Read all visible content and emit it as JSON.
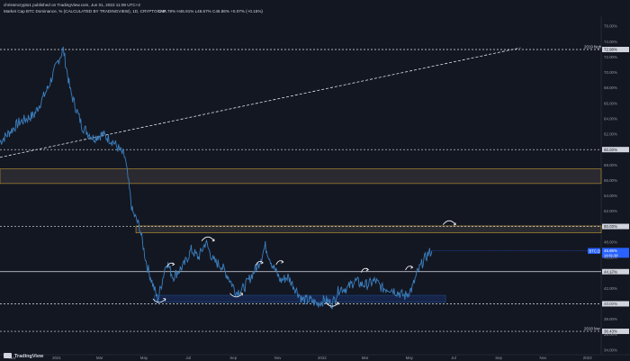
{
  "header": {
    "published": "chrissmcrypto1 published on TradingView.com, Jun 01, 2022 11:08 UTC+2",
    "symbol_line": "Market Cap BTC Dominance, % (CALCULATED BY TRADINGVIEW), 1D, CRYPTOCAP",
    "ohlc": "O46.78%  H46.91%  L46.67%  C46.86%  +0.07% (+0.15%)"
  },
  "brand": {
    "name": "TradingView"
  },
  "colors": {
    "background": "#131722",
    "price_line": "#3b7fbf",
    "support_zone": "#1e4f86",
    "resistance_zone": "#c49a34",
    "current_price_tag": "#2962ff",
    "annotation": "#ffffff"
  },
  "chart_data": {
    "type": "line",
    "title": "Market Cap BTC Dominance, % (CALCULATED BY TRADINGVIEW), 1D, CRYPTOCAP",
    "ylabel": "%",
    "y_scale": "linear",
    "ylim": [
      33.4,
      77.3
    ],
    "xlim": [
      "2020-10-15",
      "2023-01-20"
    ],
    "grid": false,
    "x_ticks": [
      "Nov",
      "2021",
      "Mar",
      "May",
      "Jul",
      "Sep",
      "Nov",
      "2022",
      "Mar",
      "May",
      "Jul",
      "Sep",
      "Nov",
      "2023"
    ],
    "x_tick_dates": [
      "2020-11-01",
      "2021-01-01",
      "2021-03-01",
      "2021-05-01",
      "2021-07-01",
      "2021-09-01",
      "2021-11-01",
      "2022-01-01",
      "2022-03-01",
      "2022-05-01",
      "2022-07-01",
      "2022-09-01",
      "2022-11-01",
      "2023-01-01"
    ],
    "y_ticks": [
      "76.00%",
      "74.00%",
      "72.00%",
      "70.00%",
      "68.00%",
      "66.00%",
      "64.00%",
      "62.00%",
      "60.00%",
      "58.00%",
      "56.00%",
      "54.00%",
      "52.00%",
      "50.00%",
      "48.00%",
      "46.00%",
      "44.00%",
      "42.00%",
      "40.00%",
      "38.00%",
      "36.00%",
      "34.00%"
    ],
    "y_tick_values": [
      76,
      74,
      72,
      70,
      68,
      66,
      64,
      62,
      60,
      58,
      56,
      54,
      52,
      50,
      48,
      46,
      44,
      42,
      40,
      38,
      36,
      34
    ],
    "series": [
      {
        "x": [
          "2020-10-15",
          "2020-11-10",
          "2020-12-01",
          "2020-12-20",
          "2021-01-03",
          "2021-01-10",
          "2021-01-20",
          "2021-02-05",
          "2021-02-20",
          "2021-03-05",
          "2021-03-20",
          "2021-04-05",
          "2021-04-15",
          "2021-04-25",
          "2021-05-05",
          "2021-05-15",
          "2021-05-20",
          "2021-05-25",
          "2021-06-01",
          "2021-06-10",
          "2021-06-25",
          "2021-07-05",
          "2021-07-15",
          "2021-07-25",
          "2021-08-05",
          "2021-08-15",
          "2021-08-25",
          "2021-09-05",
          "2021-09-15",
          "2021-09-25",
          "2021-10-05",
          "2021-10-15",
          "2021-10-25",
          "2021-11-05",
          "2021-11-15",
          "2021-11-25",
          "2021-12-05",
          "2021-12-15",
          "2021-12-25",
          "2022-01-05",
          "2022-01-15",
          "2022-01-25",
          "2022-02-05",
          "2022-02-15",
          "2022-02-25",
          "2022-03-05",
          "2022-03-15",
          "2022-03-25",
          "2022-04-05",
          "2022-04-15",
          "2022-04-25",
          "2022-05-05",
          "2022-05-12",
          "2022-05-20",
          "2022-05-27",
          "2022-06-01"
        ],
        "values": [
          61.0,
          63.5,
          64.5,
          68.0,
          71.5,
          73.0,
          67.5,
          63.0,
          61.5,
          62.0,
          61.0,
          59.0,
          52.0,
          50.0,
          45.0,
          42.0,
          40.5,
          42.5,
          45.5,
          43.5,
          45.0,
          47.0,
          46.0,
          48.0,
          45.5,
          45.0,
          43.5,
          41.5,
          42.0,
          43.5,
          45.0,
          47.5,
          45.0,
          43.0,
          43.5,
          42.0,
          40.5,
          40.5,
          40.0,
          40.5,
          40.0,
          42.0,
          42.0,
          43.0,
          42.5,
          42.5,
          43.0,
          42.0,
          42.0,
          41.5,
          41.0,
          42.0,
          44.0,
          45.5,
          46.5,
          46.86
        ]
      }
    ],
    "horizontal_levels": [
      {
        "value": 72.98,
        "label": "72.98%",
        "caption": "2019 high",
        "style": "dashed"
      },
      {
        "value": 60.0,
        "label": "60.00%",
        "style": "dashed"
      },
      {
        "value": 50.03,
        "label": "50.03%",
        "style": "dashed"
      },
      {
        "value": 44.17,
        "label": "44.17%",
        "style": "solid"
      },
      {
        "value": 40.0,
        "label": "40.00%",
        "style": "dashed"
      },
      {
        "value": 36.43,
        "label": "36.43%",
        "caption": "2018 low",
        "style": "dashed"
      }
    ],
    "zones": [
      {
        "from": 55.6,
        "to": 57.5,
        "kind": "resistance",
        "x_start": "2020-10-15"
      },
      {
        "from": 49.2,
        "to": 50.1,
        "kind": "resistance",
        "x_start": "2021-04-20"
      },
      {
        "from": 40.2,
        "to": 41.1,
        "kind": "support",
        "x_start": "2021-05-15",
        "x_end": "2022-06-20"
      }
    ],
    "trendline": {
      "from": [
        "2020-10-15",
        59.0
      ],
      "to": [
        "2022-10-01",
        73.2
      ],
      "style": "dashed"
    },
    "current_price": {
      "value": 46.86,
      "label": "46.86%",
      "countdown": "14:51:38",
      "tag": "BTC.D"
    },
    "annotations": {
      "bottom_arcs": [
        [
          "2021-05-22",
          40.3
        ],
        [
          "2021-09-05",
          41.0
        ],
        [
          "2022-01-15",
          39.8
        ]
      ],
      "top_arcs": [
        [
          "2021-07-28",
          48.5
        ],
        [
          "2022-06-25",
          50.6
        ]
      ],
      "bounce_arrows": [
        [
          "2021-06-08",
          45.0
        ],
        [
          "2021-10-08",
          45.2
        ],
        [
          "2021-11-05",
          45.3
        ],
        [
          "2022-03-02",
          44.3
        ],
        [
          "2022-05-02",
          44.6
        ]
      ]
    }
  }
}
